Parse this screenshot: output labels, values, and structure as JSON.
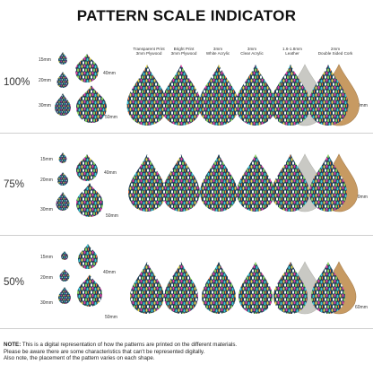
{
  "title": "PATTERN SCALE INDICATOR",
  "materials": [
    {
      "line1": "Transparent Print",
      "line2": "3mm Plywood"
    },
    {
      "line1": "Bright Print",
      "line2": "3mm Plywood"
    },
    {
      "line1": "3mm",
      "line2": "White Acrylic"
    },
    {
      "line1": "3mm",
      "line2": "Clear Acrylic"
    },
    {
      "line1": "1.6-1.8mm",
      "line2": "Leather"
    },
    {
      "line1": "2mm",
      "line2": "Double Sided Cork"
    }
  ],
  "sections": [
    {
      "percent": "100%",
      "sizes": [
        "15mm",
        "20mm",
        "30mm",
        "40mm",
        "50mm"
      ],
      "compare_size": "60mm"
    },
    {
      "percent": "75%",
      "sizes": [
        "15mm",
        "20mm",
        "30mm",
        "40mm",
        "50mm"
      ],
      "compare_size": "60mm"
    },
    {
      "percent": "50%",
      "sizes": [
        "15mm",
        "20mm",
        "30mm",
        "40mm",
        "50mm"
      ],
      "compare_size": "60mm"
    }
  ],
  "note": {
    "label": "NOTE:",
    "line1": "This is a digital representation of how the patterns are printed on the different materials.",
    "line2": "Please be aware there are some characteristics that can't be represented digitally.",
    "line3": "Also note, the placement of the pattern varies on each shape."
  },
  "colors": {
    "pattern_base": "#1f3f58",
    "pattern_accents": [
      "#e8d44a",
      "#e23fa0",
      "#3fc7d4",
      "#8bd35b",
      "#f07a3c",
      "#ffffff"
    ],
    "leather": "#c9c9c4",
    "cork": "#c79a62",
    "divider": "#cfcfcf"
  }
}
